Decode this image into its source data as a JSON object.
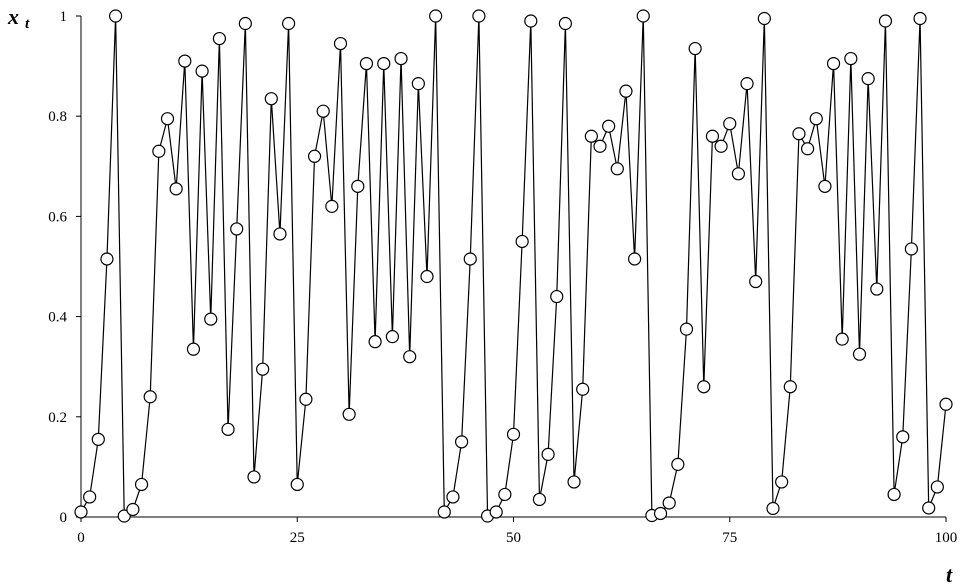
{
  "chart_data": {
    "type": "line",
    "title": "",
    "xlabel": "t",
    "ylabel": "x",
    "ylabel_subscript": "t",
    "xlim": [
      0,
      100
    ],
    "ylim": [
      0,
      1
    ],
    "x_ticks": [
      0,
      25,
      50,
      75,
      100
    ],
    "y_ticks": [
      0,
      0.2,
      0.4,
      0.6,
      0.8,
      1
    ],
    "y_tick_labels": [
      "0",
      "0.2",
      "0.4",
      "0.6",
      "0.8",
      "1"
    ],
    "grid": false,
    "legend": "none",
    "marker": "open-circle",
    "colors": {
      "line": "#000000",
      "marker_fill": "#ffffff",
      "axis": "#000000"
    },
    "series": [
      {
        "x": [
          0,
          1,
          2,
          3,
          4,
          5,
          6,
          7,
          8,
          9,
          10,
          11,
          12,
          13,
          14,
          15,
          16,
          17,
          18,
          19,
          20,
          21,
          22,
          23,
          24,
          25,
          26,
          27,
          28,
          29,
          30,
          31,
          32,
          33,
          34,
          35,
          36,
          37,
          38,
          39,
          40,
          41,
          42,
          43,
          44,
          45,
          46,
          47,
          48,
          49,
          50,
          51,
          52,
          53,
          54,
          55,
          56,
          57,
          58,
          59,
          60,
          61,
          62,
          63,
          64,
          65,
          66,
          67,
          68,
          69,
          70,
          71,
          72,
          73,
          74,
          75,
          76,
          77,
          78,
          79,
          80,
          81,
          82,
          83,
          84,
          85,
          86,
          87,
          88,
          89,
          90,
          91,
          92,
          93,
          94,
          95,
          96,
          97,
          98,
          99,
          100
        ],
        "values": [
          0.01,
          0.04,
          0.155,
          0.515,
          1.0,
          0.002,
          0.015,
          0.065,
          0.24,
          0.73,
          0.795,
          0.655,
          0.91,
          0.335,
          0.89,
          0.395,
          0.955,
          0.175,
          0.575,
          0.985,
          0.08,
          0.295,
          0.835,
          0.565,
          0.985,
          0.065,
          0.235,
          0.72,
          0.81,
          0.62,
          0.945,
          0.205,
          0.66,
          0.905,
          0.35,
          0.905,
          0.36,
          0.915,
          0.32,
          0.865,
          0.48,
          1.0,
          0.01,
          0.04,
          0.15,
          0.515,
          1.0,
          0.002,
          0.01,
          0.045,
          0.165,
          0.55,
          0.99,
          0.035,
          0.125,
          0.44,
          0.985,
          0.07,
          0.255,
          0.76,
          0.74,
          0.78,
          0.695,
          0.85,
          0.515,
          1.0,
          0.003,
          0.007,
          0.028,
          0.105,
          0.375,
          0.935,
          0.26,
          0.76,
          0.74,
          0.785,
          0.685,
          0.865,
          0.47,
          0.995,
          0.017,
          0.07,
          0.26,
          0.765,
          0.735,
          0.795,
          0.66,
          0.905,
          0.355,
          0.915,
          0.325,
          0.875,
          0.455,
          0.99,
          0.045,
          0.16,
          0.535,
          0.995,
          0.018,
          0.06,
          0.225
        ]
      }
    ]
  }
}
